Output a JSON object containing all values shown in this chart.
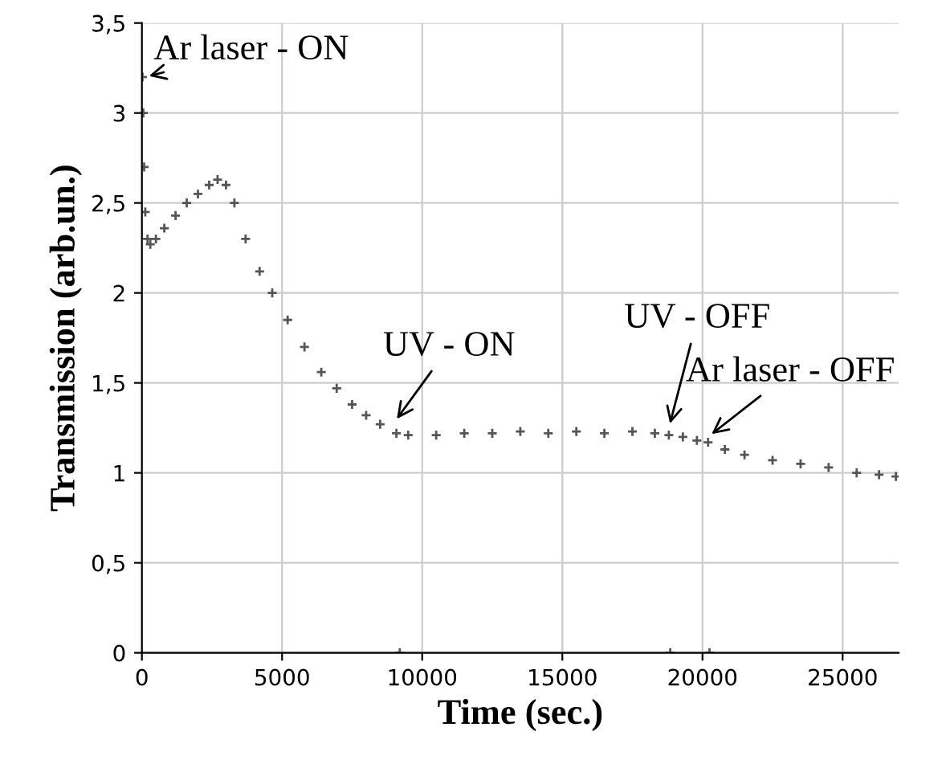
{
  "chart_data": {
    "type": "scatter",
    "xlabel": "Time (sec.)",
    "ylabel": "Transmission (arb.un.)",
    "xlim": [
      0,
      27000
    ],
    "xticks": [
      0,
      5000,
      10000,
      15000,
      20000,
      25000
    ],
    "ylim": [
      0,
      3.5
    ],
    "yticks": [
      0,
      {
        "value": 0.5,
        "label": "0,5"
      },
      1,
      {
        "value": 1.5,
        "label": "1,5"
      },
      2,
      {
        "value": 2.5,
        "label": "2,5"
      },
      3,
      {
        "value": 3.5,
        "label": "3,5"
      }
    ],
    "grid": true,
    "marker": "cross",
    "series": [
      {
        "color": "#555555",
        "x": [
          20,
          50,
          80,
          120,
          200,
          300,
          500,
          800,
          1200,
          1600,
          2000,
          2400,
          2700,
          3000,
          3300,
          3700,
          4200,
          4650,
          5200,
          5800,
          6400,
          6950,
          7500,
          8000,
          8500,
          9080,
          9200,
          9500,
          10500,
          11500,
          12500,
          13500,
          14500,
          15500,
          16500,
          17500,
          18300,
          18800,
          18850,
          19300,
          19800,
          20200,
          20250,
          20800,
          21500,
          22500,
          23500,
          24500,
          25500,
          26300,
          26900
        ],
        "values": [
          3.2,
          3.0,
          2.7,
          2.45,
          2.3,
          2.27,
          2.3,
          2.36,
          2.43,
          2.5,
          2.55,
          2.6,
          2.63,
          2.6,
          2.5,
          2.3,
          2.12,
          2.0,
          1.85,
          1.7,
          1.56,
          1.47,
          1.38,
          1.32,
          1.27,
          1.22,
          0,
          1.21,
          1.21,
          1.22,
          1.22,
          1.23,
          1.22,
          1.23,
          1.22,
          1.23,
          1.22,
          1.21,
          0,
          1.2,
          1.18,
          1.17,
          0,
          1.13,
          1.1,
          1.07,
          1.05,
          1.03,
          1.0,
          0.99,
          0.98
        ]
      }
    ],
    "annotations": [
      {
        "text": "Ar laser - ON",
        "x": 100,
        "y": 3.2
      },
      {
        "text": "UV - ON",
        "x": 9000,
        "y": 1.28
      },
      {
        "text": "UV - OFF",
        "x": 18800,
        "y": 1.25
      },
      {
        "text": "Ar laser - OFF",
        "x": 20200,
        "y": 1.2
      }
    ]
  }
}
